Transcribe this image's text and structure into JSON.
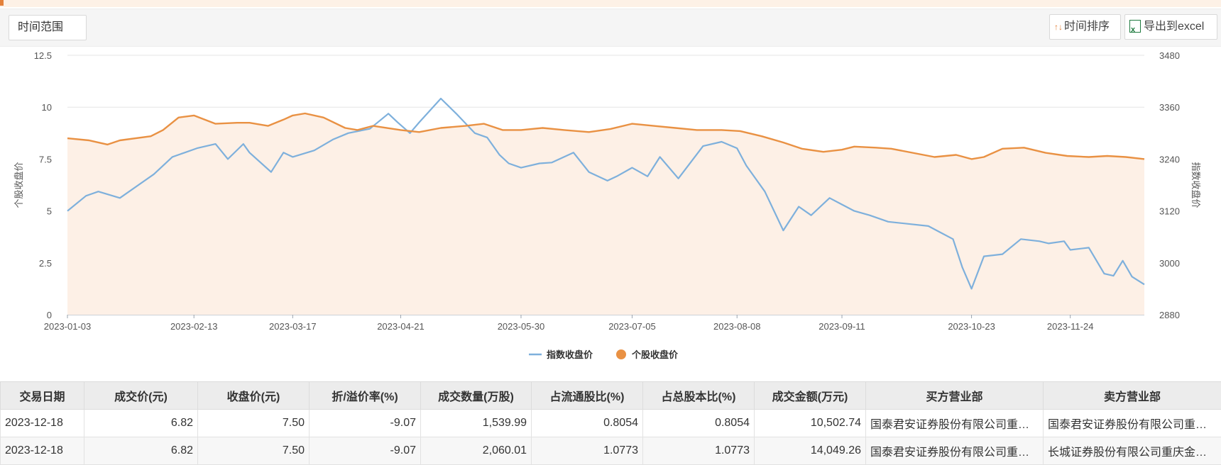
{
  "toolbar": {
    "range_label": "时间范围",
    "sort_label": "时间排序",
    "export_label": "导出到excel"
  },
  "chart_data": {
    "type": "line",
    "left_axis": {
      "label": "个股收盘价",
      "range": [
        0,
        12.5
      ],
      "ticks": [
        "0",
        "2.5",
        "5",
        "7.5",
        "10",
        "12.5"
      ]
    },
    "right_axis": {
      "label": "指数收盘价",
      "range": [
        2880,
        3480
      ],
      "ticks": [
        "2880",
        "3000",
        "3120",
        "3240",
        "3360",
        "3480"
      ]
    },
    "x_ticks": [
      "2023-01-03",
      "2023-02-13",
      "2023-03-17",
      "2023-04-21",
      "2023-05-30",
      "2023-07-05",
      "2023-08-08",
      "2023-09-11",
      "2023-10-23",
      "2023-11-24"
    ],
    "x_range": [
      "2023-01-03",
      "2023-12-18"
    ],
    "grid": true,
    "legend_position": "bottom-center",
    "series": [
      {
        "name": "指数收盘价",
        "axis": "right",
        "color": "#7eb0dc",
        "points": [
          [
            "2023-01-03",
            3120
          ],
          [
            "2023-01-09",
            3155
          ],
          [
            "2023-01-13",
            3165
          ],
          [
            "2023-01-20",
            3150
          ],
          [
            "2023-01-31",
            3205
          ],
          [
            "2023-02-06",
            3245
          ],
          [
            "2023-02-10",
            3255
          ],
          [
            "2023-02-14",
            3265
          ],
          [
            "2023-02-20",
            3275
          ],
          [
            "2023-02-24",
            3240
          ],
          [
            "2023-03-01",
            3275
          ],
          [
            "2023-03-03",
            3255
          ],
          [
            "2023-03-10",
            3210
          ],
          [
            "2023-03-14",
            3255
          ],
          [
            "2023-03-17",
            3245
          ],
          [
            "2023-03-24",
            3260
          ],
          [
            "2023-03-30",
            3285
          ],
          [
            "2023-04-04",
            3300
          ],
          [
            "2023-04-11",
            3310
          ],
          [
            "2023-04-17",
            3345
          ],
          [
            "2023-04-20",
            3325
          ],
          [
            "2023-04-24",
            3300
          ],
          [
            "2023-04-27",
            3325
          ],
          [
            "2023-05-04",
            3380
          ],
          [
            "2023-05-09",
            3345
          ],
          [
            "2023-05-15",
            3300
          ],
          [
            "2023-05-19",
            3290
          ],
          [
            "2023-05-23",
            3250
          ],
          [
            "2023-05-26",
            3230
          ],
          [
            "2023-05-30",
            3220
          ],
          [
            "2023-06-05",
            3230
          ],
          [
            "2023-06-09",
            3232
          ],
          [
            "2023-06-16",
            3255
          ],
          [
            "2023-06-21",
            3210
          ],
          [
            "2023-06-27",
            3190
          ],
          [
            "2023-06-30",
            3200
          ],
          [
            "2023-07-05",
            3220
          ],
          [
            "2023-07-10",
            3200
          ],
          [
            "2023-07-14",
            3245
          ],
          [
            "2023-07-20",
            3195
          ],
          [
            "2023-07-28",
            3270
          ],
          [
            "2023-08-03",
            3280
          ],
          [
            "2023-08-08",
            3265
          ],
          [
            "2023-08-11",
            3225
          ],
          [
            "2023-08-17",
            3165
          ],
          [
            "2023-08-23",
            3075
          ],
          [
            "2023-08-28",
            3130
          ],
          [
            "2023-09-01",
            3110
          ],
          [
            "2023-09-07",
            3150
          ],
          [
            "2023-09-11",
            3135
          ],
          [
            "2023-09-15",
            3120
          ],
          [
            "2023-09-20",
            3110
          ],
          [
            "2023-09-26",
            3095
          ],
          [
            "2023-10-09",
            3085
          ],
          [
            "2023-10-13",
            3070
          ],
          [
            "2023-10-17",
            3055
          ],
          [
            "2023-10-20",
            2990
          ],
          [
            "2023-10-23",
            2940
          ],
          [
            "2023-10-27",
            3015
          ],
          [
            "2023-11-02",
            3020
          ],
          [
            "2023-11-08",
            3055
          ],
          [
            "2023-11-14",
            3050
          ],
          [
            "2023-11-17",
            3045
          ],
          [
            "2023-11-22",
            3050
          ],
          [
            "2023-11-24",
            3030
          ],
          [
            "2023-11-30",
            3035
          ],
          [
            "2023-12-05",
            2975
          ],
          [
            "2023-12-08",
            2970
          ],
          [
            "2023-12-11",
            3005
          ],
          [
            "2023-12-14",
            2968
          ],
          [
            "2023-12-18",
            2950
          ]
        ]
      },
      {
        "name": "个股收盘价",
        "axis": "left",
        "color": "#e99143",
        "points": [
          [
            "2023-01-03",
            8.5
          ],
          [
            "2023-01-10",
            8.4
          ],
          [
            "2023-01-16",
            8.2
          ],
          [
            "2023-01-20",
            8.4
          ],
          [
            "2023-01-30",
            8.6
          ],
          [
            "2023-02-03",
            8.9
          ],
          [
            "2023-02-08",
            9.5
          ],
          [
            "2023-02-13",
            9.6
          ],
          [
            "2023-02-20",
            9.2
          ],
          [
            "2023-02-27",
            9.25
          ],
          [
            "2023-03-03",
            9.25
          ],
          [
            "2023-03-09",
            9.1
          ],
          [
            "2023-03-14",
            9.4
          ],
          [
            "2023-03-17",
            9.6
          ],
          [
            "2023-03-21",
            9.7
          ],
          [
            "2023-03-27",
            9.5
          ],
          [
            "2023-04-03",
            9.0
          ],
          [
            "2023-04-07",
            8.9
          ],
          [
            "2023-04-12",
            9.1
          ],
          [
            "2023-04-21",
            8.9
          ],
          [
            "2023-04-27",
            8.8
          ],
          [
            "2023-05-04",
            9.0
          ],
          [
            "2023-05-12",
            9.1
          ],
          [
            "2023-05-18",
            9.2
          ],
          [
            "2023-05-24",
            8.9
          ],
          [
            "2023-05-30",
            8.9
          ],
          [
            "2023-06-06",
            9.0
          ],
          [
            "2023-06-13",
            8.9
          ],
          [
            "2023-06-21",
            8.8
          ],
          [
            "2023-06-28",
            8.95
          ],
          [
            "2023-07-05",
            9.2
          ],
          [
            "2023-07-12",
            9.1
          ],
          [
            "2023-07-19",
            9.0
          ],
          [
            "2023-07-26",
            8.9
          ],
          [
            "2023-08-03",
            8.9
          ],
          [
            "2023-08-09",
            8.85
          ],
          [
            "2023-08-16",
            8.6
          ],
          [
            "2023-08-23",
            8.3
          ],
          [
            "2023-08-29",
            8.0
          ],
          [
            "2023-09-05",
            7.85
          ],
          [
            "2023-09-11",
            7.95
          ],
          [
            "2023-09-15",
            8.1
          ],
          [
            "2023-09-22",
            8.05
          ],
          [
            "2023-09-27",
            8.0
          ],
          [
            "2023-10-11",
            7.6
          ],
          [
            "2023-10-18",
            7.7
          ],
          [
            "2023-10-23",
            7.5
          ],
          [
            "2023-10-27",
            7.6
          ],
          [
            "2023-11-02",
            8.0
          ],
          [
            "2023-11-09",
            8.05
          ],
          [
            "2023-11-16",
            7.8
          ],
          [
            "2023-11-23",
            7.65
          ],
          [
            "2023-11-30",
            7.6
          ],
          [
            "2023-12-06",
            7.65
          ],
          [
            "2023-12-12",
            7.6
          ],
          [
            "2023-12-18",
            7.5
          ]
        ]
      }
    ]
  },
  "table": {
    "columns": [
      "交易日期",
      "成交价(元)",
      "收盘价(元)",
      "折/溢价率(%)",
      "成交数量(万股)",
      "占流通股比(%)",
      "占总股本比(%)",
      "成交金额(万元)",
      "买方营业部",
      "卖方营业部"
    ],
    "rows": [
      [
        "2023-12-18",
        "6.82",
        "7.50",
        "-9.07",
        "1,539.99",
        "0.8054",
        "0.8054",
        "10,502.74",
        "国泰君安证券股份有限公司重…",
        "国泰君安证券股份有限公司重…"
      ],
      [
        "2023-12-18",
        "6.82",
        "7.50",
        "-9.07",
        "2,060.01",
        "1.0773",
        "1.0773",
        "14,049.26",
        "国泰君安证券股份有限公司重…",
        "长城证券股份有限公司重庆金…"
      ]
    ]
  }
}
